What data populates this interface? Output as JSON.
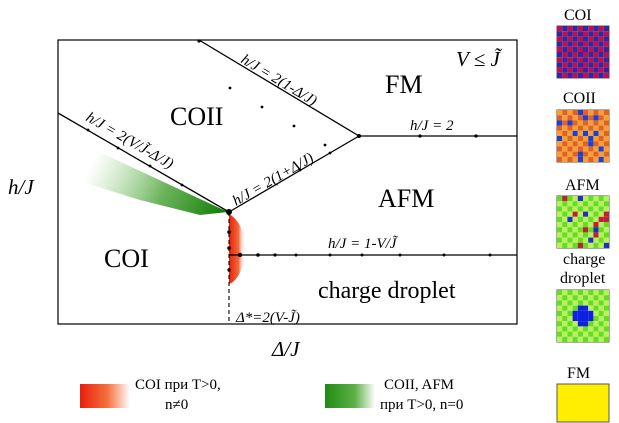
{
  "axes": {
    "x_label": "Δ/J",
    "y_label": "h/J"
  },
  "condition": "V ≤ J̃",
  "regions": {
    "fm": "FM",
    "coii": "COII",
    "afm": "AFM",
    "coi": "COI",
    "charge_droplet": "charge droplet"
  },
  "boundaries": {
    "top_line": "h/J = 2(1-Δ/J)",
    "coii_coi": "h/J = 2(V/J̃-Δ/J)",
    "coii_afm": "h/J = 2(1+Δ/J)",
    "fm_afm": "h/J = 2",
    "afm_droplet": "h/J = 1-V/J̃",
    "critical": "Δ*=2(V-J̃)"
  },
  "legend": {
    "red_line1": "COI при T>0,",
    "red_line2": "n≠0",
    "green_line1": "COII, AFM",
    "green_line2": "при T>0, n=0",
    "red_color": "#e8200c",
    "green_color": "#1f8a12"
  },
  "swatches": [
    {
      "label_lines": [
        "COI"
      ],
      "pattern": "coi"
    },
    {
      "label_lines": [
        "COII"
      ],
      "pattern": "coii"
    },
    {
      "label_lines": [
        "AFM"
      ],
      "pattern": "afm"
    },
    {
      "label_lines": [
        "charge",
        "droplet"
      ],
      "pattern": "droplet"
    },
    {
      "label_lines": [
        "FM"
      ],
      "pattern": "fm"
    }
  ]
}
